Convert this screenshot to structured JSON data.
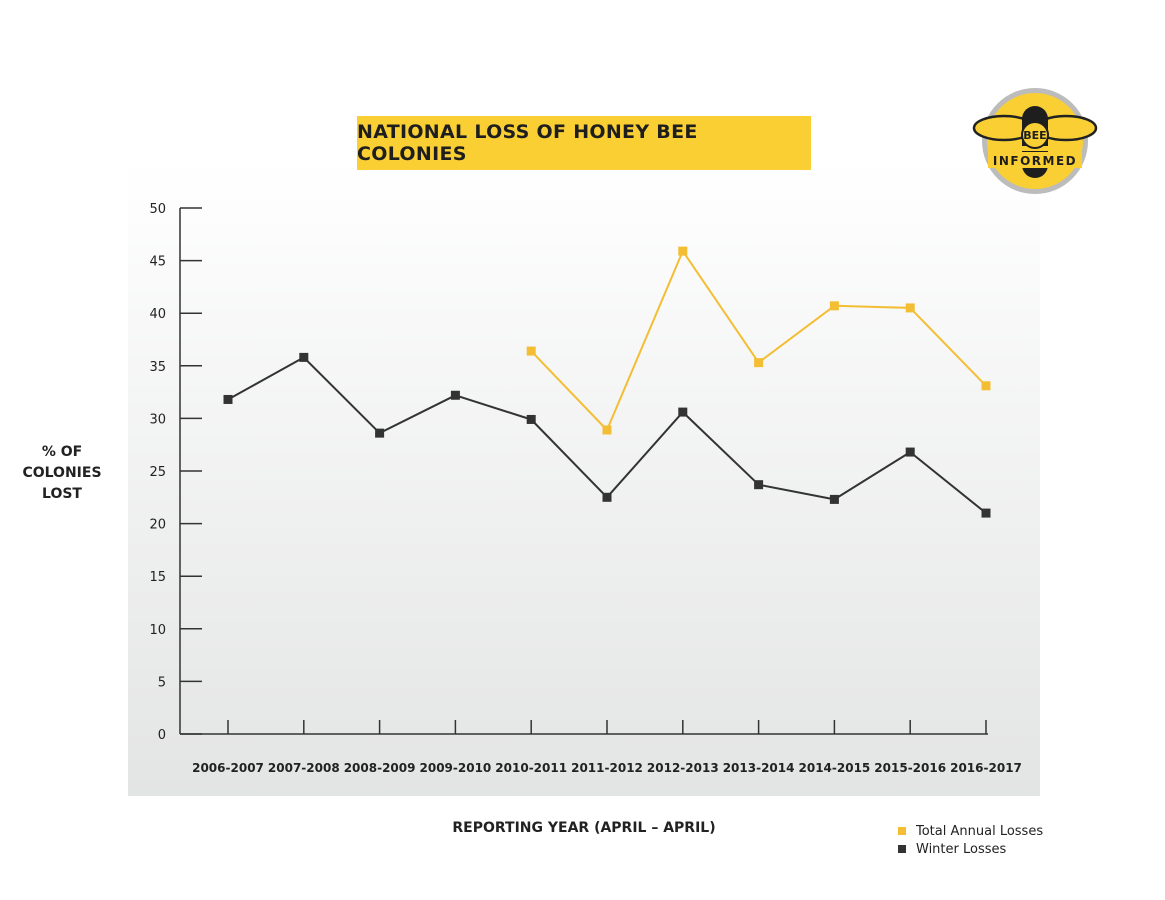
{
  "chart_data": {
    "type": "line",
    "title": "NATIONAL LOSS OF HONEY BEE COLONIES",
    "xlabel": "REPORTING YEAR (APRIL – APRIL)",
    "ylabel_lines": [
      "% OF",
      "COLONIES",
      "LOST"
    ],
    "categories": [
      "2006-2007",
      "2007-2008",
      "2008-2009",
      "2009-2010",
      "2010-2011",
      "2011-2012",
      "2012-2013",
      "2013-2014",
      "2014-2015",
      "2015-2016",
      "2016-2017"
    ],
    "ylim": [
      0,
      50
    ],
    "yticks": [
      0,
      5,
      10,
      15,
      20,
      25,
      30,
      35,
      40,
      45,
      50
    ],
    "series": [
      {
        "name": "Total Annual Losses",
        "color": "#f3be33",
        "values": [
          null,
          null,
          null,
          null,
          36.4,
          28.9,
          45.9,
          35.3,
          40.7,
          40.5,
          33.1
        ]
      },
      {
        "name": "Winter Losses",
        "color": "#333333",
        "values": [
          31.8,
          35.8,
          28.6,
          32.2,
          29.9,
          22.5,
          30.6,
          23.7,
          22.3,
          26.8,
          21.0
        ]
      }
    ],
    "grid": false,
    "legend_position": "bottom-right"
  },
  "colors": {
    "banner": "#f9cf33",
    "plot_background_top": "#ffffff",
    "plot_background_bottom": "#e3e4e4",
    "axis": "#333333"
  },
  "logo": {
    "text_top": "BEE",
    "text_bottom": "INFORMED",
    "icon": "bee-informed-logo"
  }
}
